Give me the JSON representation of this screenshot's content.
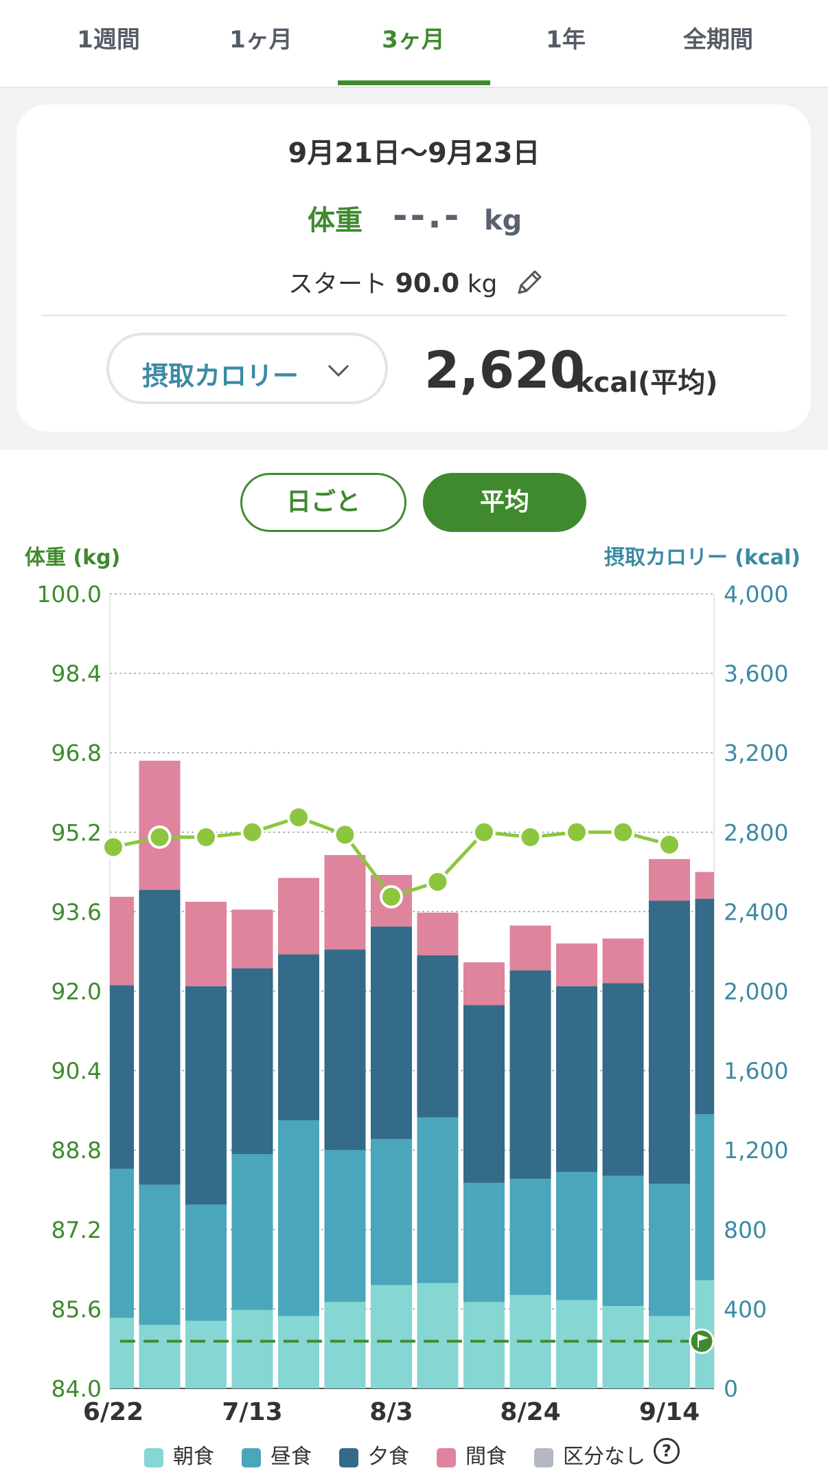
{
  "tabs": [
    {
      "label": "1週間"
    },
    {
      "label": "1ヶ月"
    },
    {
      "label": "3ヶ月"
    },
    {
      "label": "1年"
    },
    {
      "label": "全期間"
    }
  ],
  "active_tab": "3ヶ月",
  "summary": {
    "range": "9月21日〜9月23日",
    "weight_label": "体重",
    "weight_value": "--.-",
    "weight_unit": "kg",
    "start_label": "スタート",
    "start_value": "90.0",
    "start_unit": "kg",
    "metric_selector": "摂取カロリー",
    "calorie_value": "2,620",
    "calorie_unit": "kcal(平均)"
  },
  "mode_buttons": {
    "daily": "日ごと",
    "average": "平均",
    "selected": "average"
  },
  "colors": {
    "accent": "#3f8a2e",
    "weight_line": "#8cc63e",
    "breakfast": "#86d6d3",
    "lunch": "#4aa6bb",
    "dinner": "#336b88",
    "snack": "#de849d",
    "uncategorized": "#b3b8c2",
    "calorie_axis": "#3b8aa4"
  },
  "chart_data": {
    "type": "bar",
    "left_axis_title": "体重 (kg)",
    "right_axis_title": "摂取カロリー (kcal)",
    "left_ticks": [
      "100.0",
      "98.4",
      "96.8",
      "95.2",
      "93.6",
      "92.0",
      "90.4",
      "88.8",
      "87.2",
      "85.6",
      "84.0"
    ],
    "right_ticks": [
      "4,000",
      "3,600",
      "3,200",
      "2,800",
      "2,400",
      "2,000",
      "1,600",
      "1,200",
      "800",
      "400",
      "0"
    ],
    "left_ylim": [
      84.0,
      100.0
    ],
    "right_ylim": [
      0,
      4000
    ],
    "x_tick_labels": [
      "6/22",
      "7/13",
      "8/3",
      "8/24",
      "9/14"
    ],
    "x_tick_positions": [
      0,
      3,
      6,
      9,
      12
    ],
    "series": [
      {
        "name": "朝食",
        "values": [
          355,
          320,
          340,
          395,
          365,
          435,
          520,
          530,
          435,
          470,
          445,
          415,
          365,
          545
        ]
      },
      {
        "name": "昼食",
        "values": [
          750,
          705,
          585,
          785,
          985,
          765,
          735,
          835,
          600,
          585,
          645,
          655,
          665,
          835
        ]
      },
      {
        "name": "夕食",
        "values": [
          925,
          1485,
          1100,
          935,
          835,
          1010,
          1070,
          815,
          895,
          1050,
          935,
          970,
          1425,
          1085
        ]
      },
      {
        "name": "間食",
        "values": [
          445,
          650,
          425,
          295,
          385,
          475,
          260,
          215,
          215,
          225,
          215,
          225,
          210,
          135
        ]
      },
      {
        "name": "区分なし",
        "values": [
          0,
          0,
          0,
          0,
          0,
          0,
          0,
          0,
          0,
          0,
          0,
          0,
          0,
          0
        ]
      }
    ],
    "weight_series": {
      "name": "体重",
      "values": [
        94.9,
        95.1,
        95.1,
        95.2,
        95.5,
        95.15,
        93.9,
        94.2,
        95.2,
        95.1,
        95.2,
        95.2,
        94.95
      ]
    },
    "target_weight": 84.95
  },
  "legend": [
    "朝食",
    "昼食",
    "夕食",
    "間食",
    "区分なし"
  ],
  "legend_help": "?"
}
